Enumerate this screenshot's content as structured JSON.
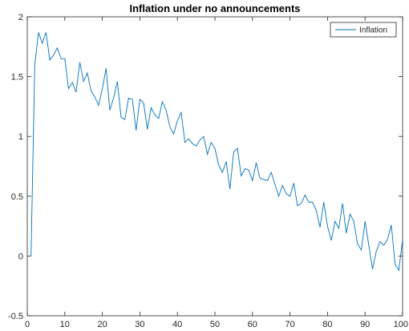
{
  "chart_data": {
    "type": "line",
    "title": "Inflation under no announcements",
    "xlabel": "",
    "ylabel": "",
    "xlim": [
      0,
      100
    ],
    "ylim": [
      -0.5,
      2
    ],
    "xticks": [
      0,
      10,
      20,
      30,
      40,
      50,
      60,
      70,
      80,
      90,
      100
    ],
    "yticks": [
      -0.5,
      0,
      0.5,
      1,
      1.5,
      2
    ],
    "ytick_labels": [
      "-0.5",
      "0",
      "0.5",
      "1",
      "1.5",
      "2"
    ],
    "grid": false,
    "legend": {
      "position": "top-right"
    },
    "series": [
      {
        "name": "Inflation",
        "color": "#0072BD",
        "x": [
          1,
          2,
          3,
          4,
          5,
          6,
          7,
          8,
          9,
          10,
          11,
          12,
          13,
          14,
          15,
          16,
          17,
          18,
          19,
          20,
          21,
          22,
          23,
          24,
          25,
          26,
          27,
          28,
          29,
          30,
          31,
          32,
          33,
          34,
          35,
          36,
          37,
          38,
          39,
          40,
          41,
          42,
          43,
          44,
          45,
          46,
          47,
          48,
          49,
          50,
          51,
          52,
          53,
          54,
          55,
          56,
          57,
          58,
          59,
          60,
          61,
          62,
          63,
          64,
          65,
          66,
          67,
          68,
          69,
          70,
          71,
          72,
          73,
          74,
          75,
          76,
          77,
          78,
          79,
          80,
          81,
          82,
          83,
          84,
          85,
          86,
          87,
          88,
          89,
          90,
          91,
          92,
          93,
          94,
          95,
          96,
          97,
          98,
          99,
          100
        ],
        "values": [
          0,
          1.6,
          1.87,
          1.78,
          1.87,
          1.64,
          1.68,
          1.74,
          1.65,
          1.65,
          1.4,
          1.45,
          1.37,
          1.62,
          1.46,
          1.53,
          1.38,
          1.33,
          1.26,
          1.4,
          1.57,
          1.22,
          1.32,
          1.46,
          1.16,
          1.14,
          1.32,
          1.31,
          1.05,
          1.31,
          1.28,
          1.06,
          1.24,
          1.18,
          1.15,
          1.29,
          1.22,
          1.08,
          1.02,
          1.13,
          1.2,
          0.95,
          0.98,
          0.94,
          0.92,
          0.97,
          1.0,
          0.85,
          0.95,
          0.9,
          0.76,
          0.7,
          0.79,
          0.56,
          0.87,
          0.9,
          0.67,
          0.73,
          0.72,
          0.63,
          0.78,
          0.65,
          0.64,
          0.63,
          0.7,
          0.6,
          0.5,
          0.59,
          0.52,
          0.5,
          0.61,
          0.42,
          0.44,
          0.51,
          0.45,
          0.45,
          0.38,
          0.24,
          0.45,
          0.25,
          0.13,
          0.29,
          0.23,
          0.44,
          0.19,
          0.35,
          0.29,
          0.1,
          0.05,
          0.29,
          0.09,
          -0.11,
          0.04,
          0.12,
          0.09,
          0.14,
          0.26,
          -0.07,
          -0.12,
          0.14
        ]
      }
    ]
  }
}
